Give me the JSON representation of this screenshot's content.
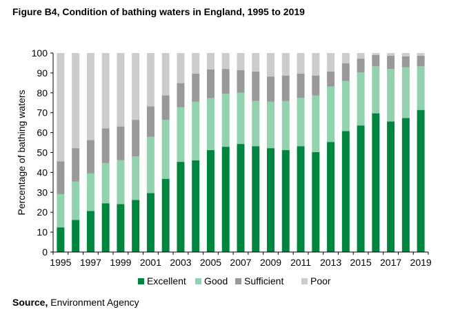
{
  "title": "Figure B4, Condition of bathing waters in England, 1995 to 2019",
  "source": {
    "label": "Source,",
    "text": " Environment Agency"
  },
  "chart_data": {
    "type": "bar",
    "stacked": true,
    "title": "Figure B4, Condition of bathing waters in England, 1995 to 2019",
    "xlabel": "",
    "ylabel": "Percentage of bathing waters",
    "ylim": [
      0,
      100
    ],
    "yticks": [
      0,
      10,
      20,
      30,
      40,
      50,
      60,
      70,
      80,
      90,
      100
    ],
    "xtick_labels": [
      "1995",
      "1997",
      "1999",
      "2001",
      "2003",
      "2005",
      "2007",
      "2009",
      "2011",
      "2013",
      "2015",
      "2017",
      "2019"
    ],
    "grid": false,
    "legend_position": "bottom",
    "categories": [
      "1995",
      "1996",
      "1997",
      "1998",
      "1999",
      "2000",
      "2001",
      "2002",
      "2003",
      "2004",
      "2005",
      "2006",
      "2007",
      "2008",
      "2009",
      "2010",
      "2011",
      "2012",
      "2013",
      "2014",
      "2015",
      "2016",
      "2017",
      "2018",
      "2019"
    ],
    "series": [
      {
        "name": "Excellent",
        "color": "#00853f",
        "values": [
          12.4,
          16.1,
          20.6,
          24.5,
          24.1,
          26.2,
          29.6,
          36.8,
          45.3,
          46.1,
          51.2,
          52.9,
          54.3,
          53.2,
          52.2,
          51.2,
          53.2,
          50.2,
          55.3,
          60.8,
          63.6,
          69.7,
          65.6,
          67.3,
          71.4
        ]
      },
      {
        "name": "Good",
        "color": "#93d2ae",
        "values": [
          16.7,
          19.3,
          18.9,
          20.2,
          22.1,
          21.8,
          28.3,
          29.6,
          27.5,
          29.5,
          26.1,
          26.6,
          25.8,
          22.7,
          23.3,
          24.7,
          24.3,
          28.5,
          27.9,
          25.1,
          26.7,
          23.6,
          26.4,
          25.6,
          21.9
        ]
      },
      {
        "name": "Sufficient",
        "color": "#999999",
        "values": [
          16.5,
          16.8,
          16.8,
          17.4,
          16.9,
          18.4,
          15.3,
          12.3,
          12.1,
          14.0,
          14.4,
          12.5,
          11.3,
          14.8,
          12.7,
          12.8,
          12.1,
          10.0,
          7.5,
          8.9,
          6.9,
          5.7,
          6.6,
          5.4,
          5.3
        ]
      },
      {
        "name": "Poor",
        "color": "#cccccc",
        "values": [
          54.4,
          47.8,
          43.7,
          37.9,
          36.9,
          33.6,
          26.8,
          21.3,
          15.1,
          10.4,
          8.3,
          8.0,
          8.6,
          9.3,
          11.8,
          11.3,
          10.4,
          11.3,
          9.3,
          5.2,
          2.8,
          1.0,
          1.4,
          1.7,
          1.4
        ]
      }
    ]
  }
}
